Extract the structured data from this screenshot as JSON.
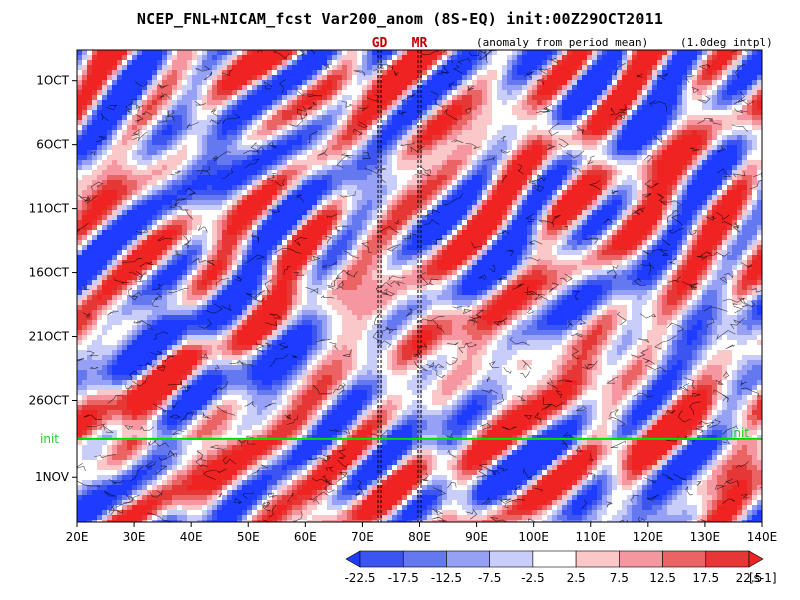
{
  "chart_data": {
    "type": "heatmap",
    "title": "NCEP_FNL+NICAM_fcst Var200_anom (8S-EQ) init:00Z29OCT2011",
    "note_left": "(anomaly from period mean)",
    "note_right": "(1.0deg intpl)",
    "x_ticks": [
      "20E",
      "30E",
      "40E",
      "50E",
      "60E",
      "70E",
      "80E",
      "90E",
      "100E",
      "110E",
      "120E",
      "130E",
      "140E"
    ],
    "x_range": [
      20,
      140
    ],
    "y_ticks": [
      "1OCT",
      "6OCT",
      "11OCT",
      "16OCT",
      "21OCT",
      "26OCT",
      "1NOV"
    ],
    "y_tick_days": [
      1,
      6,
      11,
      16,
      21,
      26,
      32
    ],
    "y_range_days": [
      -1.4,
      35.5
    ],
    "markers": [
      {
        "label": "GD",
        "lon": 73
      },
      {
        "label": "MR",
        "lon": 80
      }
    ],
    "init_line": {
      "label": "init",
      "day": 29,
      "color": "#00dd00"
    },
    "colorbar": {
      "unit": "[s-1]",
      "levels": [
        "-22.5",
        "-17.5",
        "-12.5",
        "-7.5",
        "-2.5",
        "2.5",
        "7.5",
        "12.5",
        "17.5",
        "22.5"
      ],
      "colors": [
        "#1e3cff",
        "#3c55f0",
        "#6478f0",
        "#96a0f5",
        "#c8cdfa",
        "#ffffff",
        "#fac8c8",
        "#f596a0",
        "#eb6464",
        "#e63737",
        "#f02323"
      ]
    }
  }
}
